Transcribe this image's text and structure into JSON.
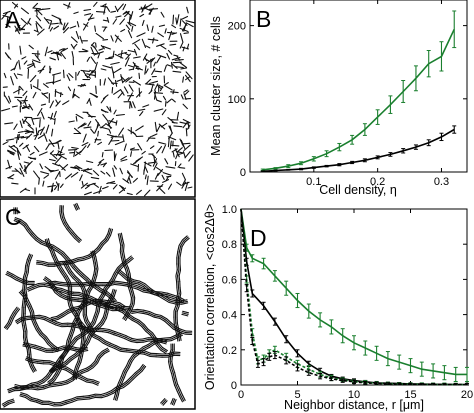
{
  "panels": {
    "A": {
      "letter": "A",
      "kind": "simulation-snapshot",
      "description_visible": false
    },
    "B": {
      "letter": "B"
    },
    "C": {
      "letter": "C",
      "kind": "simulation-snapshot"
    },
    "D": {
      "letter": "D"
    }
  },
  "colors": {
    "green": "#1a7f2e",
    "black": "#000000"
  },
  "chart_data": [
    {
      "panel": "B",
      "type": "line",
      "title": "",
      "xlabel": "Cell density, η",
      "ylabel": "Mean cluster size, # cells",
      "xlim": [
        0,
        0.34
      ],
      "ylim": [
        0,
        235
      ],
      "xticks": [
        0.1,
        0.2,
        0.3
      ],
      "xtick_labels": [
        "0.1",
        "0.2",
        "0.3"
      ],
      "yticks": [
        0,
        100,
        200
      ],
      "ytick_labels": [
        "0",
        "100",
        "200"
      ],
      "grid": false,
      "series": [
        {
          "color_key": "green",
          "x": [
            0.02,
            0.04,
            0.06,
            0.08,
            0.1,
            0.12,
            0.14,
            0.16,
            0.18,
            0.2,
            0.22,
            0.24,
            0.26,
            0.28,
            0.3,
            0.32
          ],
          "y": [
            3,
            5,
            8,
            12,
            18,
            25,
            34,
            44,
            58,
            75,
            92,
            110,
            128,
            148,
            158,
            195
          ],
          "err": [
            1,
            1,
            2,
            2,
            3,
            4,
            5,
            6,
            8,
            10,
            12,
            15,
            17,
            18,
            20,
            25
          ]
        },
        {
          "color_key": "black",
          "x": [
            0.02,
            0.04,
            0.06,
            0.08,
            0.1,
            0.12,
            0.14,
            0.16,
            0.18,
            0.2,
            0.22,
            0.24,
            0.26,
            0.28,
            0.3,
            0.32
          ],
          "y": [
            1,
            2,
            3,
            4,
            6,
            8,
            10,
            13,
            16,
            20,
            24,
            29,
            34,
            40,
            48,
            58
          ],
          "err": [
            0.5,
            0.5,
            0.5,
            1,
            1,
            1,
            1.5,
            1.5,
            2,
            2,
            2.5,
            3,
            3,
            4,
            5,
            5
          ]
        }
      ]
    },
    {
      "panel": "D",
      "type": "line",
      "title": "",
      "xlabel": "Neighbor distance, r [μm]",
      "ylabel": "Orientation correlation, <cos2Δθ>",
      "xlim": [
        0,
        20
      ],
      "ylim": [
        0,
        1
      ],
      "xticks": [
        0,
        5,
        10,
        15,
        20
      ],
      "xtick_labels": [
        "0",
        "5",
        "10",
        "15",
        "20"
      ],
      "yticks": [
        0,
        0.2,
        0.4,
        0.6,
        0.8,
        1.0
      ],
      "ytick_labels": [
        "0",
        "0.2",
        "0.4",
        "0.6",
        "0.8",
        "1.0"
      ],
      "grid": false,
      "series": [
        {
          "color_key": "green",
          "style": "solid",
          "x": [
            0,
            0.5,
            1,
            2,
            3,
            4,
            5,
            6,
            7,
            8,
            9,
            10,
            11,
            12,
            13,
            14,
            15,
            16,
            17,
            18,
            19,
            20
          ],
          "y": [
            1.0,
            0.78,
            0.72,
            0.69,
            0.62,
            0.55,
            0.48,
            0.42,
            0.37,
            0.33,
            0.28,
            0.24,
            0.21,
            0.18,
            0.15,
            0.13,
            0.11,
            0.09,
            0.08,
            0.07,
            0.06,
            0.06
          ],
          "err": [
            0,
            0.02,
            0.02,
            0.03,
            0.03,
            0.04,
            0.04,
            0.04,
            0.04,
            0.04,
            0.04,
            0.04,
            0.04,
            0.04,
            0.04,
            0.04,
            0.04,
            0.04,
            0.04,
            0.04,
            0.04,
            0.04
          ]
        },
        {
          "color_key": "black",
          "style": "solid",
          "x": [
            0,
            0.5,
            1,
            2,
            3,
            4,
            5,
            6,
            7,
            8,
            9,
            10,
            11,
            12,
            13,
            14,
            15,
            16,
            17,
            18,
            19,
            20
          ],
          "y": [
            1.0,
            0.7,
            0.52,
            0.45,
            0.36,
            0.26,
            0.18,
            0.12,
            0.08,
            0.05,
            0.035,
            0.025,
            0.018,
            0.012,
            0.01,
            0.008,
            0.006,
            0.005,
            0.004,
            0.004,
            0.003,
            0.003
          ],
          "err": [
            0,
            0.02,
            0.02,
            0.02,
            0.02,
            0.02,
            0.02,
            0.015,
            0.015,
            0.01,
            0.01,
            0.01,
            0.008,
            0.008,
            0.006,
            0.006,
            0.005,
            0.005,
            0.005,
            0.005,
            0.005,
            0.005
          ]
        },
        {
          "color_key": "green",
          "style": "dashed",
          "x": [
            0,
            0.5,
            1,
            1.5,
            2,
            2.5,
            3,
            4,
            5,
            6,
            7,
            8,
            9,
            10,
            11,
            12,
            13,
            14,
            15,
            16,
            17,
            18,
            19,
            20
          ],
          "y": [
            1.0,
            0.6,
            0.3,
            0.14,
            0.15,
            0.18,
            0.2,
            0.16,
            0.12,
            0.09,
            0.06,
            0.04,
            0.03,
            0.02,
            0.015,
            0.01,
            0.008,
            0.006,
            0.005,
            0.004,
            0.003,
            0.003,
            0.002,
            0.002
          ],
          "err": [
            0,
            0.02,
            0.02,
            0.02,
            0.02,
            0.02,
            0.02,
            0.02,
            0.02,
            0.02,
            0.015,
            0.015,
            0.01,
            0.01,
            0.01,
            0.01,
            0.008,
            0.008,
            0.008,
            0.008,
            0.008,
            0.008,
            0.008,
            0.008
          ]
        },
        {
          "color_key": "black",
          "style": "dashed",
          "x": [
            0,
            0.5,
            1,
            1.5,
            2,
            2.5,
            3,
            4,
            5,
            6,
            7,
            8,
            9,
            10,
            11,
            12,
            13,
            14,
            15,
            16,
            17,
            18,
            19,
            20
          ],
          "y": [
            1.0,
            0.55,
            0.25,
            0.12,
            0.13,
            0.16,
            0.17,
            0.14,
            0.1,
            0.07,
            0.05,
            0.035,
            0.025,
            0.018,
            0.012,
            0.009,
            0.007,
            0.005,
            0.004,
            0.003,
            0.003,
            0.002,
            0.002,
            0.002
          ],
          "err": [
            0,
            0.02,
            0.02,
            0.02,
            0.02,
            0.02,
            0.02,
            0.02,
            0.02,
            0.015,
            0.015,
            0.01,
            0.01,
            0.01,
            0.008,
            0.008,
            0.006,
            0.006,
            0.006,
            0.006,
            0.006,
            0.006,
            0.006,
            0.006
          ]
        }
      ]
    }
  ]
}
